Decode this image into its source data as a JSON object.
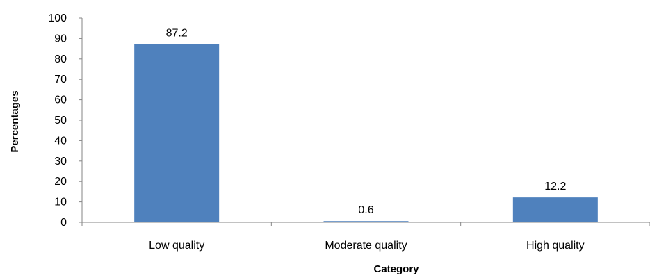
{
  "chart_data": {
    "type": "bar",
    "title": "",
    "xlabel": "Category",
    "ylabel": "Percentages",
    "categories": [
      "Low quality",
      "Moderate quality",
      "High quality"
    ],
    "values": [
      87.2,
      0.6,
      12.2
    ],
    "data_labels": [
      "87.2",
      "0.6",
      "12.2"
    ],
    "ylim": [
      0,
      100
    ],
    "yticks": [
      0,
      10,
      20,
      30,
      40,
      50,
      60,
      70,
      80,
      90,
      100
    ],
    "grid": false,
    "legend": "none",
    "colors": {
      "bar": "#4F81BD",
      "axis": "#868686"
    }
  }
}
